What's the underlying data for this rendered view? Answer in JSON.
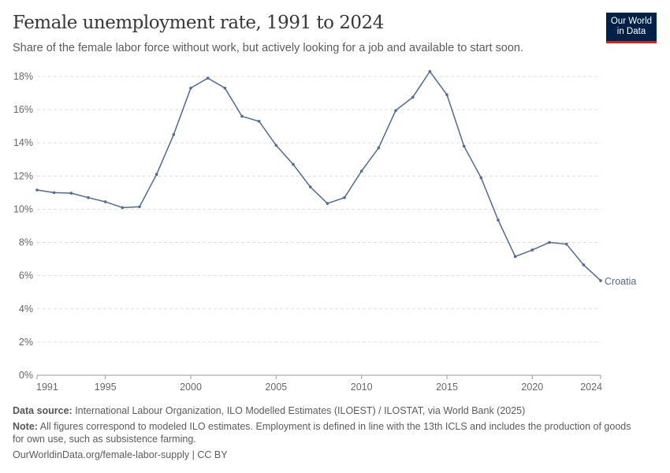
{
  "header": {
    "title": "Female unemployment rate, 1991 to 2024",
    "subtitle": "Share of the female labor force without work, but actively looking for a job and available to start soon.",
    "logo_line1": "Our World",
    "logo_line2": "in Data"
  },
  "chart_data": {
    "type": "line",
    "title": "Female unemployment rate, 1991 to 2024",
    "xlabel": "",
    "ylabel": "",
    "ylim": [
      0,
      18
    ],
    "xlim": [
      1991,
      2024
    ],
    "y_ticks": [
      "0%",
      "2%",
      "4%",
      "6%",
      "8%",
      "10%",
      "12%",
      "14%",
      "16%",
      "18%"
    ],
    "y_tick_values": [
      0,
      2,
      4,
      6,
      8,
      10,
      12,
      14,
      16,
      18
    ],
    "x_ticks": [
      "1991",
      "1995",
      "2000",
      "2005",
      "2010",
      "2015",
      "2020",
      "2024"
    ],
    "x_tick_values": [
      1991,
      1995,
      2000,
      2005,
      2010,
      2015,
      2020,
      2024
    ],
    "grid": "horizontal dashed",
    "series": [
      {
        "name": "Croatia",
        "color": "#4c6a9c",
        "x": [
          1991,
          1992,
          1993,
          1994,
          1995,
          1996,
          1997,
          1998,
          1999,
          2000,
          2001,
          2002,
          2003,
          2004,
          2005,
          2006,
          2007,
          2008,
          2009,
          2010,
          2011,
          2012,
          2013,
          2014,
          2015,
          2016,
          2017,
          2018,
          2019,
          2020,
          2021,
          2022,
          2023,
          2024
        ],
        "values": [
          11.16,
          11.0,
          10.97,
          10.7,
          10.45,
          10.1,
          10.15,
          12.1,
          14.5,
          17.3,
          17.9,
          17.3,
          15.6,
          15.3,
          13.85,
          12.7,
          11.35,
          10.35,
          10.7,
          12.3,
          13.7,
          15.95,
          16.75,
          18.3,
          16.9,
          13.8,
          11.9,
          9.35,
          7.15,
          7.55,
          8.0,
          7.9,
          6.65,
          5.7
        ]
      }
    ]
  },
  "footer": {
    "source_label": "Data source:",
    "source_text": " International Labour Organization, ILO Modelled Estimates (ILOEST) / ILOSTAT, via World Bank (2025)",
    "note_label": "Note:",
    "note_text": " All figures correspond to modeled ILO estimates. Employment is defined in line with the 13th ICLS and includes the production of goods for own use, such as subsistence farming.",
    "url": "OurWorldinData.org/female-labor-supply | CC BY"
  }
}
